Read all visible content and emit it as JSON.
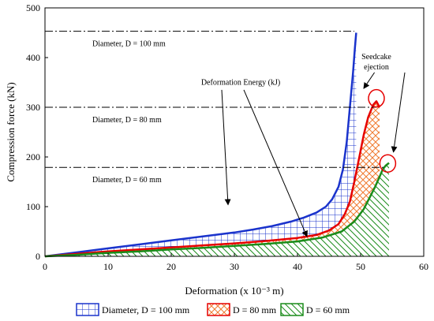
{
  "chart_data": {
    "type": "area",
    "xlabel": "Deformation (x 10⁻³ m)",
    "ylabel": "Compression force (kN)",
    "xlim": [
      0,
      60
    ],
    "ylim": [
      0,
      500
    ],
    "xticks": [
      0,
      10,
      20,
      30,
      40,
      50,
      60
    ],
    "yticks": [
      0,
      100,
      200,
      300,
      400,
      500
    ],
    "grid": false,
    "legend_position": "bottom",
    "series": [
      {
        "name": "Diameter, D = 100 mm",
        "color": "#1a33cc",
        "hatch": "grid",
        "x": [
          0,
          5,
          10,
          15,
          20,
          25,
          30,
          33,
          36,
          39,
          41,
          43,
          44.5,
          45.5,
          46.5,
          47.2,
          47.8,
          48.3,
          48.8,
          49.1,
          49.3
        ],
        "y": [
          0,
          8,
          16,
          24,
          32,
          40,
          48,
          54,
          61,
          70,
          78,
          88,
          100,
          115,
          140,
          175,
          230,
          300,
          370,
          420,
          450
        ]
      },
      {
        "name": "D = 80 mm",
        "color": "#e60000",
        "hatch": "crosshatch",
        "x": [
          0,
          5,
          10,
          15,
          20,
          25,
          30,
          35,
          40,
          43,
          45,
          46.5,
          47.5,
          48.3,
          49,
          49.8,
          50.5,
          51.2,
          52,
          52.5,
          53
        ],
        "y": [
          0,
          5,
          10,
          14,
          18,
          22,
          26,
          31,
          37,
          43,
          52,
          65,
          85,
          110,
          150,
          200,
          245,
          280,
          305,
          312,
          300
        ]
      },
      {
        "name": "D = 60 mm",
        "color": "#1a8c1a",
        "hatch": "diagonal",
        "x": [
          0,
          5,
          10,
          15,
          20,
          25,
          30,
          35,
          40,
          44,
          47,
          49,
          50.5,
          51.5,
          52.3,
          53,
          53.5,
          54,
          54.5
        ],
        "y": [
          0,
          3,
          7,
          10,
          14,
          17,
          21,
          25,
          30,
          38,
          50,
          70,
          95,
          120,
          140,
          160,
          175,
          183,
          188
        ]
      }
    ],
    "reference_lines": [
      {
        "label": "Diameter, D = 100 mm",
        "y": 453,
        "x_end": 49
      },
      {
        "label": "Diameter, D = 80 mm",
        "y": 300,
        "x_end": 52.5
      },
      {
        "label": "Diameter, D = 60 mm",
        "y": 179,
        "x_end": 54
      }
    ],
    "annotations": {
      "deformation_energy": {
        "text": "Deformation Energy (kJ)",
        "x": 31,
        "y": 345
      },
      "seedcake_ejection": {
        "line1": "Seedcake",
        "line2": "ejection",
        "x": 52.5,
        "y": 397
      }
    },
    "ejection_markers": [
      {
        "x": 52.5,
        "y": 318,
        "color": "#e60000"
      },
      {
        "x": 54.3,
        "y": 187,
        "color": "#e60000"
      }
    ]
  }
}
